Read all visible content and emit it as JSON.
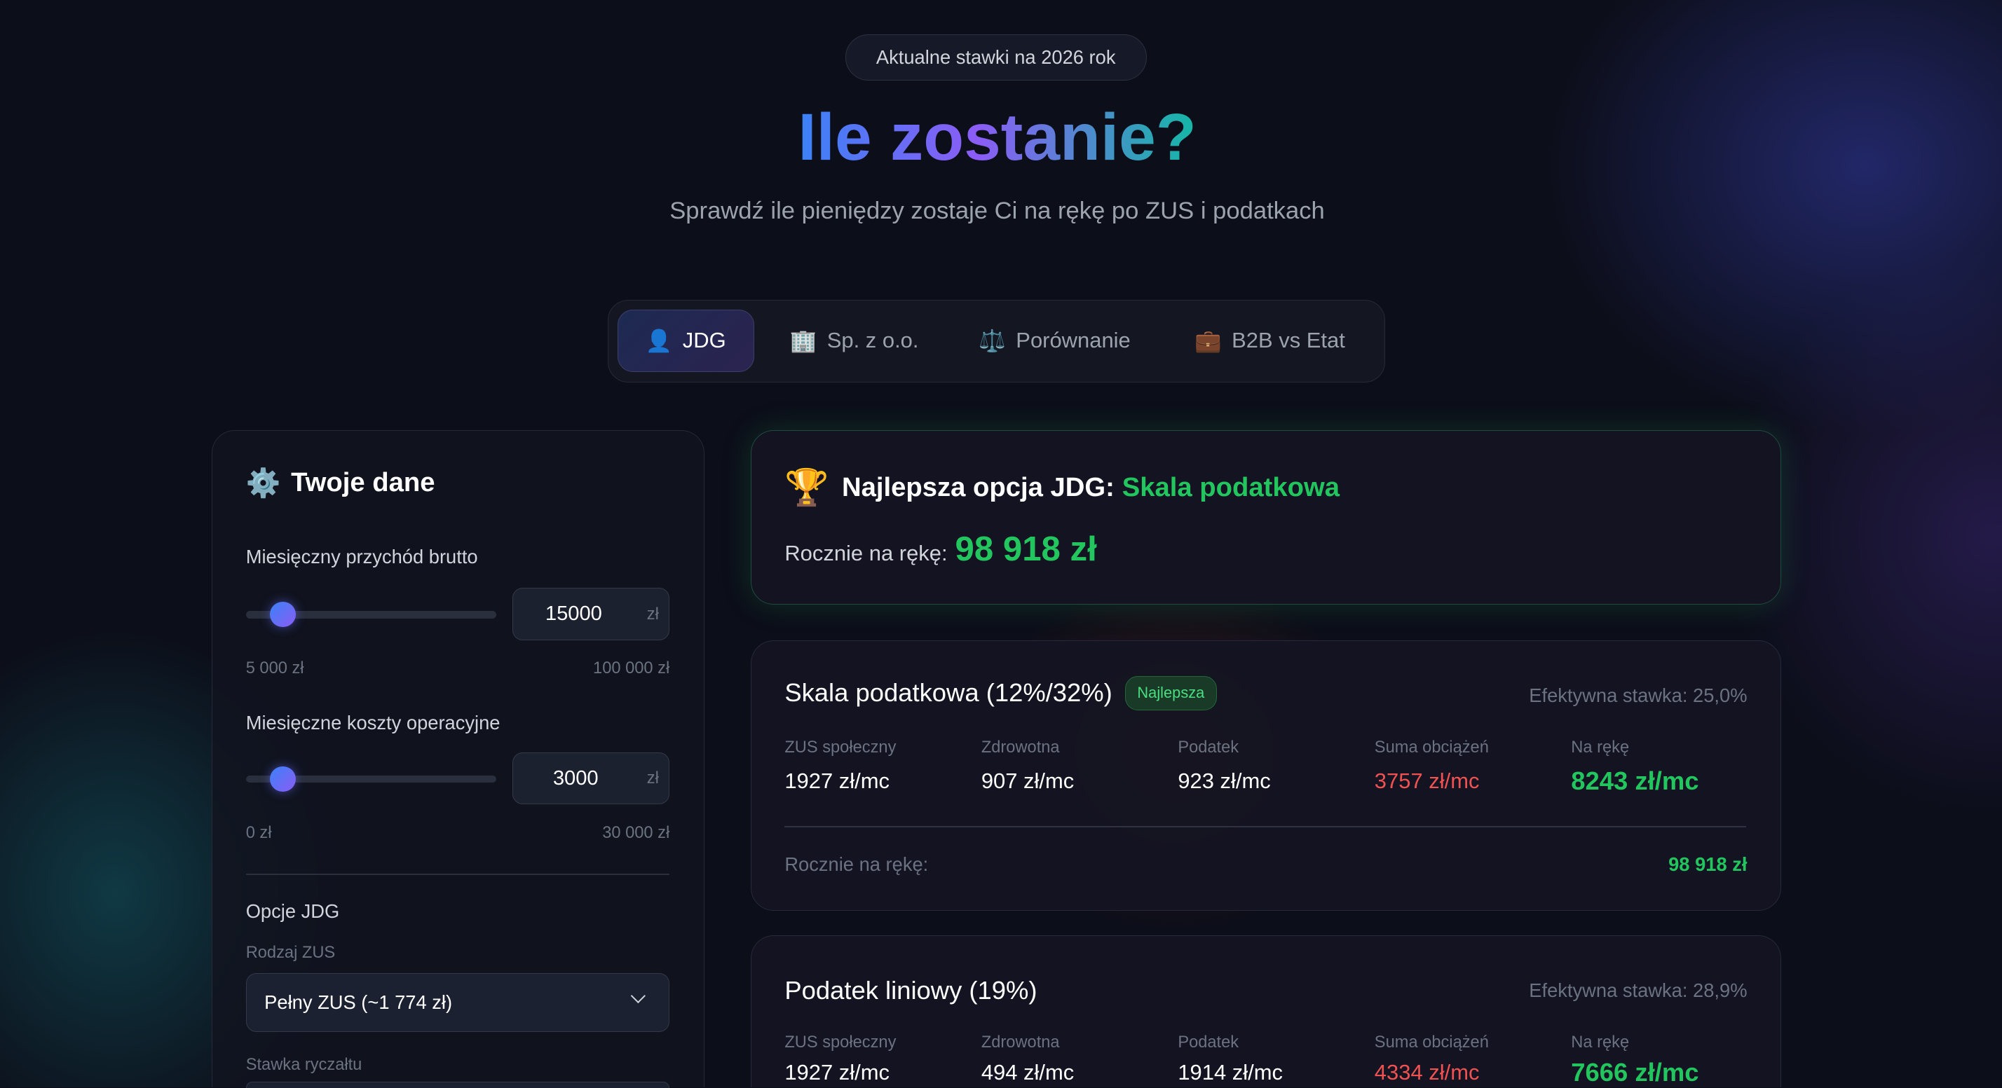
{
  "header": {
    "badge": "Aktualne stawki na 2026 rok",
    "title": "Ile zostanie?",
    "subtitle": "Sprawdź ile pieniędzy zostaje Ci na rękę po ZUS i podatkach"
  },
  "tabs": [
    {
      "icon": "👤",
      "label": "JDG",
      "active": true
    },
    {
      "icon": "🏢",
      "label": "Sp. z o.o."
    },
    {
      "icon": "⚖️",
      "label": "Porównanie"
    },
    {
      "icon": "💼",
      "label": "B2B vs Etat"
    }
  ],
  "form": {
    "title_icon": "⚙️",
    "title": "Twoje dane",
    "revenue": {
      "label": "Miesięczny przychód brutto",
      "value": "15000",
      "unit": "zł",
      "min": "5 000 zł",
      "max": "100 000 zł",
      "level_fraction": 0.105
    },
    "costs": {
      "label": "Miesięczne koszty operacyjne",
      "value": "3000",
      "unit": "zł",
      "min": "0 zł",
      "max": "30 000 zł",
      "level_fraction": 0.1
    },
    "section": "Opcje JDG",
    "zus_label": "Rodzaj ZUS",
    "zus_value": "Pełny ZUS (~1 774 zł)",
    "ryczalt_label": "Stawka ryczałtu"
  },
  "best": {
    "icon": "🏆",
    "prefix": "Najlepsza opcja JDG:",
    "option": "Skala podatkowa",
    "yearly_label": "Rocznie na rękę:",
    "yearly_value": "98 918 zł"
  },
  "columns": [
    "ZUS społeczny",
    "Zdrowotna",
    "Podatek",
    "Suma obciążeń",
    "Na rękę"
  ],
  "results": [
    {
      "title": "Skala podatkowa (12%/32%)",
      "badge": "Najlepsza",
      "rate": "Efektywna stawka: 25,0%",
      "values": [
        "1927 zł/mc",
        "907 zł/mc",
        "923 zł/mc",
        "3757 zł/mc",
        "8243 zł/mc"
      ],
      "yearly_label": "Rocznie na rękę:",
      "yearly_value": "98 918 zł"
    },
    {
      "title": "Podatek liniowy (19%)",
      "rate": "Efektywna stawka: 28,9%",
      "values": [
        "1927 zł/mc",
        "494 zł/mc",
        "1914 zł/mc",
        "4334 zł/mc",
        "7666 zł/mc"
      ]
    }
  ],
  "colors": {
    "green": "#22c55e",
    "red": "#f05252",
    "accent": "#6366f1"
  }
}
